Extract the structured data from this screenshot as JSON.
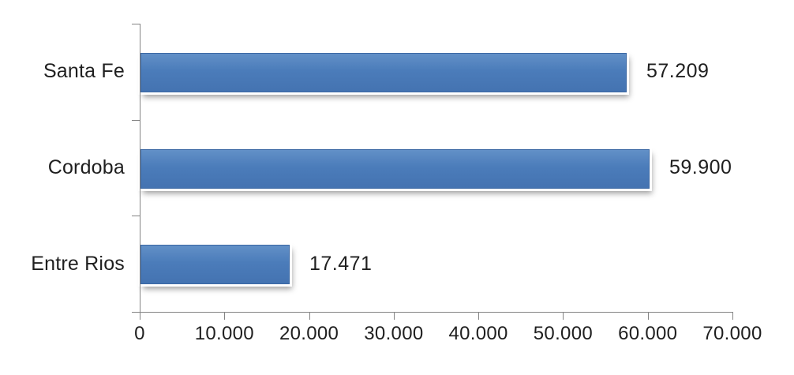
{
  "chart_data": {
    "type": "bar",
    "orientation": "horizontal",
    "title": "",
    "xlabel": "",
    "ylabel": "",
    "grid": false,
    "legend": null,
    "categories": [
      "Santa Fe",
      "Cordoba",
      "Entre Rios"
    ],
    "values": [
      57209,
      59900,
      17471
    ],
    "value_labels": [
      "57.209",
      "59.900",
      "17.471"
    ],
    "xlim": [
      0,
      70000
    ],
    "x_ticks": [
      0,
      10000,
      20000,
      30000,
      40000,
      50000,
      60000,
      70000
    ],
    "x_tick_labels": [
      "0",
      "10.000",
      "20.000",
      "30.000",
      "40.000",
      "50.000",
      "60.000",
      "70.000"
    ],
    "colors": {
      "bar": "#4b7cba",
      "bar_border": "#3a67a3",
      "axis": "#848484",
      "text": "#1f1f1f",
      "background": "#ffffff"
    }
  }
}
